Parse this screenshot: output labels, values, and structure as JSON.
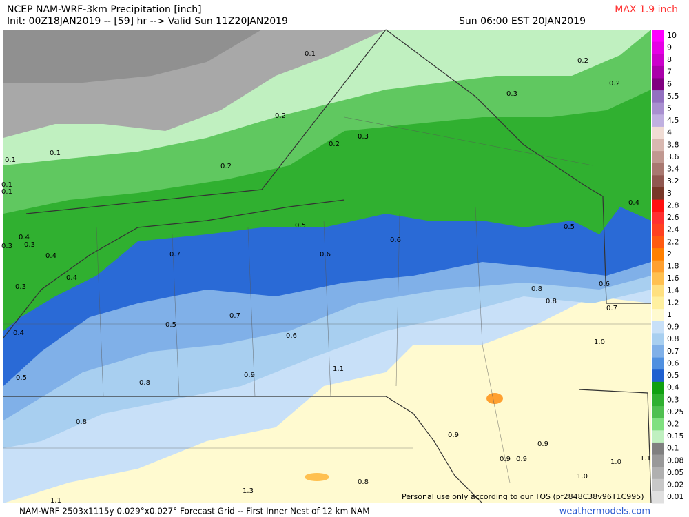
{
  "header": {
    "title": "NCEP NAM-WRF-3km Precipitation [inch]",
    "max_label": "MAX 1.9 inch",
    "init": "Init: 00Z18JAN2019 -- [59] hr --> Valid Sun 11Z20JAN2019",
    "valid_local": "Sun 06:00 EST 20JAN2019"
  },
  "colorbar": {
    "levels": [
      "10",
      "9",
      "8",
      "7",
      "6",
      "5.5",
      "5",
      "4.5",
      "4",
      "3.8",
      "3.6",
      "3.4",
      "3.2",
      "3",
      "2.8",
      "2.6",
      "2.4",
      "2.2",
      "2",
      "1.8",
      "1.6",
      "1.4",
      "1.2",
      "1",
      "0.9",
      "0.8",
      "0.7",
      "0.6",
      "0.5",
      "0.4",
      "0.3",
      "0.25",
      "0.2",
      "0.15",
      "0.1",
      "0.08",
      "0.05",
      "0.02",
      "0.01"
    ],
    "colors": [
      "#ff00ff",
      "#e600e6",
      "#cc00cc",
      "#aa00aa",
      "#800080",
      "#9370c0",
      "#a990d0",
      "#c0b0e0",
      "#f0dcd4",
      "#d8b8b0",
      "#c09890",
      "#a87870",
      "#905850",
      "#783828",
      "#ff1010",
      "#ff3030",
      "#ff4020",
      "#ff5a10",
      "#ff8000",
      "#ffa030",
      "#ffc050",
      "#ffe080",
      "#fff0a0",
      "#fffad0",
      "#c8e0f8",
      "#a8cff0",
      "#80b0e8",
      "#5090e0",
      "#2060d0",
      "#10a010",
      "#30b030",
      "#50c050",
      "#80e080",
      "#c0f0c0",
      "#808080",
      "#999999",
      "#b0b0b0",
      "#c8c8c8",
      "#e0e0e0"
    ]
  },
  "map": {
    "contour_labels": [
      "0.1",
      "0.2",
      "0.2",
      "0.3",
      "0.2",
      "0.3",
      "0.2",
      "0.1",
      "0.1",
      "0.2",
      "0.1",
      "0.1",
      "0.4",
      "0.5",
      "0.5",
      "0.4",
      "0.3",
      "0.3",
      "0.6",
      "0.7",
      "0.6",
      "0.4",
      "0.4",
      "0.3",
      "0.6",
      "0.8",
      "0.8",
      "0.7",
      "0.7",
      "0.5",
      "0.4",
      "0.6",
      "1.0",
      "1.1",
      "0.9",
      "0.5",
      "0.8",
      "0.8",
      "0.9",
      "0.9",
      "0.9",
      "0.9",
      "1.0",
      "1.1",
      "1.0",
      "0.8",
      "1.3",
      "1.1"
    ]
  },
  "footer": {
    "grid": "NAM-WRF 2503x1115y 0.029°x0.027° Forecast Grid -- First Inner Nest of 12 km NAM",
    "source": "weathermodels.com",
    "notice": "Personal use only according to our TOS (pf2848C38v96T1C995)"
  }
}
